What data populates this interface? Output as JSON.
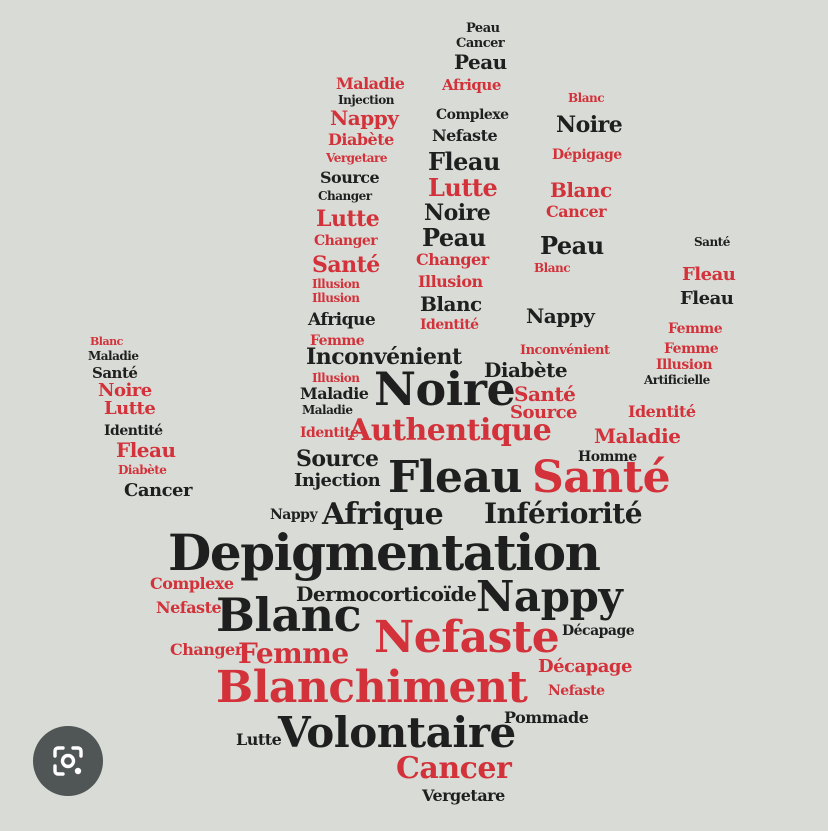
{
  "image": {
    "words": [
      {
        "id": "w01",
        "text": "Peau",
        "color": "#1f1f1f"
      },
      {
        "id": "w02",
        "text": "Cancer",
        "color": "#1f1f1f"
      },
      {
        "id": "w03",
        "text": "Peau",
        "color": "#1f1f1f"
      },
      {
        "id": "w04",
        "text": "Maladie",
        "color": "#d3323b"
      },
      {
        "id": "w05",
        "text": "Injection",
        "color": "#1f1f1f"
      },
      {
        "id": "w06",
        "text": "Afrique",
        "color": "#d3323b"
      },
      {
        "id": "w07",
        "text": "Nappy",
        "color": "#d3323b"
      },
      {
        "id": "w08",
        "text": "Complexe",
        "color": "#1f1f1f"
      },
      {
        "id": "w09",
        "text": "Nefaste",
        "color": "#1f1f1f"
      },
      {
        "id": "w10",
        "text": "Noire",
        "color": "#1f1f1f"
      },
      {
        "id": "w11",
        "text": "Diabète",
        "color": "#d3323b"
      },
      {
        "id": "w12",
        "text": "Dépigage",
        "color": "#d3323b"
      },
      {
        "id": "w13",
        "text": "Vergetare",
        "color": "#d3323b"
      },
      {
        "id": "w14",
        "text": "Fleau",
        "color": "#1f1f1f"
      },
      {
        "id": "w15",
        "text": "Blanc",
        "color": "#d3323b"
      },
      {
        "id": "w16",
        "text": "Source",
        "color": "#1f1f1f"
      },
      {
        "id": "w17",
        "text": "Lutte",
        "color": "#d3323b"
      },
      {
        "id": "w18",
        "text": "Cancer",
        "color": "#d3323b"
      },
      {
        "id": "w19",
        "text": "Lutte",
        "color": "#d3323b"
      },
      {
        "id": "w20",
        "text": "Noire",
        "color": "#1f1f1f"
      },
      {
        "id": "w21",
        "text": "Peau",
        "color": "#1f1f1f"
      },
      {
        "id": "w22",
        "text": "Changer",
        "color": "#d3323b"
      },
      {
        "id": "w23",
        "text": "Peau",
        "color": "#1f1f1f"
      },
      {
        "id": "w24",
        "text": "Santé",
        "color": "#d3323b"
      },
      {
        "id": "w25",
        "text": "Changer",
        "color": "#d3323b"
      },
      {
        "id": "w26",
        "text": "Changer",
        "color": "#1f1f1f"
      },
      {
        "id": "w27",
        "text": "Blanc",
        "color": "#d3323b"
      },
      {
        "id": "w28",
        "text": "Illusion",
        "color": "#d3323b"
      },
      {
        "id": "w29",
        "text": "Fleau",
        "color": "#1f1f1f"
      },
      {
        "id": "w30",
        "text": "Blanc",
        "color": "#1f1f1f"
      },
      {
        "id": "w31",
        "text": "Afrique",
        "color": "#1f1f1f"
      },
      {
        "id": "w32",
        "text": "Identité",
        "color": "#d3323b"
      },
      {
        "id": "w33",
        "text": "Nappy",
        "color": "#1f1f1f"
      },
      {
        "id": "w34",
        "text": "Illusion",
        "color": "#d3323b"
      },
      {
        "id": "w35",
        "text": "Femme",
        "color": "#d3323b"
      },
      {
        "id": "w36",
        "text": "Illusion",
        "color": "#d3323b"
      },
      {
        "id": "w37",
        "text": "Inconvénient",
        "color": "#1f1f1f"
      },
      {
        "id": "w38",
        "text": "Diabète",
        "color": "#1f1f1f"
      },
      {
        "id": "w39",
        "text": "Artificielle",
        "color": "#1f1f1f"
      },
      {
        "id": "w40",
        "text": "Maladie",
        "color": "#1f1f1f"
      },
      {
        "id": "w41",
        "text": "Santé",
        "color": "#1f1f1f"
      },
      {
        "id": "w42",
        "text": "Noire",
        "color": "#d3323b"
      },
      {
        "id": "w43",
        "text": "Lutte",
        "color": "#d3323b"
      },
      {
        "id": "w44",
        "text": "Noire",
        "color": "#1f1f1f"
      },
      {
        "id": "w45",
        "text": "Santé",
        "color": "#d3323b"
      },
      {
        "id": "w46",
        "text": "Maladie",
        "color": "#1f1f1f"
      },
      {
        "id": "w47",
        "text": "Source",
        "color": "#d3323b"
      },
      {
        "id": "w48",
        "text": "Identité",
        "color": "#d3323b"
      },
      {
        "id": "w49",
        "text": "Identité",
        "color": "#1f1f1f"
      },
      {
        "id": "w50",
        "text": "Authentique",
        "color": "#d3323b"
      },
      {
        "id": "w51",
        "text": "Maladie",
        "color": "#d3323b"
      },
      {
        "id": "w52",
        "text": "Fleau",
        "color": "#d3323b"
      },
      {
        "id": "w53",
        "text": "Source",
        "color": "#1f1f1f"
      },
      {
        "id": "w54",
        "text": "Homme",
        "color": "#1f1f1f"
      },
      {
        "id": "w55",
        "text": "Diabète",
        "color": "#d3323b"
      },
      {
        "id": "w56",
        "text": "Injection",
        "color": "#1f1f1f"
      },
      {
        "id": "w57",
        "text": "Fleau",
        "color": "#1f1f1f"
      },
      {
        "id": "w58",
        "text": "Santé",
        "color": "#d3323b"
      },
      {
        "id": "w59",
        "text": "Cancer",
        "color": "#1f1f1f"
      },
      {
        "id": "w60",
        "text": "Nappy",
        "color": "#1f1f1f"
      },
      {
        "id": "w61",
        "text": "Afrique",
        "color": "#1f1f1f"
      },
      {
        "id": "w62",
        "text": "Infériorité",
        "color": "#1f1f1f"
      },
      {
        "id": "w63",
        "text": "Depigmentation",
        "color": "#1f1f1f"
      },
      {
        "id": "w64",
        "text": "Complexe",
        "color": "#d3323b"
      },
      {
        "id": "w65",
        "text": "Dermocorticoïde",
        "color": "#1f1f1f"
      },
      {
        "id": "w66",
        "text": "Nappy",
        "color": "#1f1f1f"
      },
      {
        "id": "w67",
        "text": "Nefaste",
        "color": "#d3323b"
      },
      {
        "id": "w68",
        "text": "Blanc",
        "color": "#1f1f1f"
      },
      {
        "id": "w69",
        "text": "Nefaste",
        "color": "#d3323b"
      },
      {
        "id": "w70",
        "text": "Décapage",
        "color": "#1f1f1f"
      },
      {
        "id": "w71",
        "text": "Femme",
        "color": "#d3323b"
      },
      {
        "id": "w72",
        "text": "Changer",
        "color": "#d3323b"
      },
      {
        "id": "w73",
        "text": "Décapage",
        "color": "#d3323b"
      },
      {
        "id": "w74",
        "text": "Blanchiment",
        "color": "#d3323b"
      },
      {
        "id": "w75",
        "text": "Nefaste",
        "color": "#d3323b"
      },
      {
        "id": "w76",
        "text": "Pommade",
        "color": "#1f1f1f"
      },
      {
        "id": "w77",
        "text": "Lutte",
        "color": "#1f1f1f"
      },
      {
        "id": "w78",
        "text": "Volontaire",
        "color": "#1f1f1f"
      },
      {
        "id": "w79",
        "text": "Cancer",
        "color": "#d3323b"
      },
      {
        "id": "w80",
        "text": "Vergetare",
        "color": "#1f1f1f"
      },
      {
        "id": "w81",
        "text": "Santé",
        "color": "#1f1f1f"
      },
      {
        "id": "w82",
        "text": "Fleau",
        "color": "#1f1f1f"
      },
      {
        "id": "w83",
        "text": "Blanc",
        "color": "#d3323b"
      }
    ]
  },
  "lens_button": {
    "icon": "camera-search-icon"
  }
}
